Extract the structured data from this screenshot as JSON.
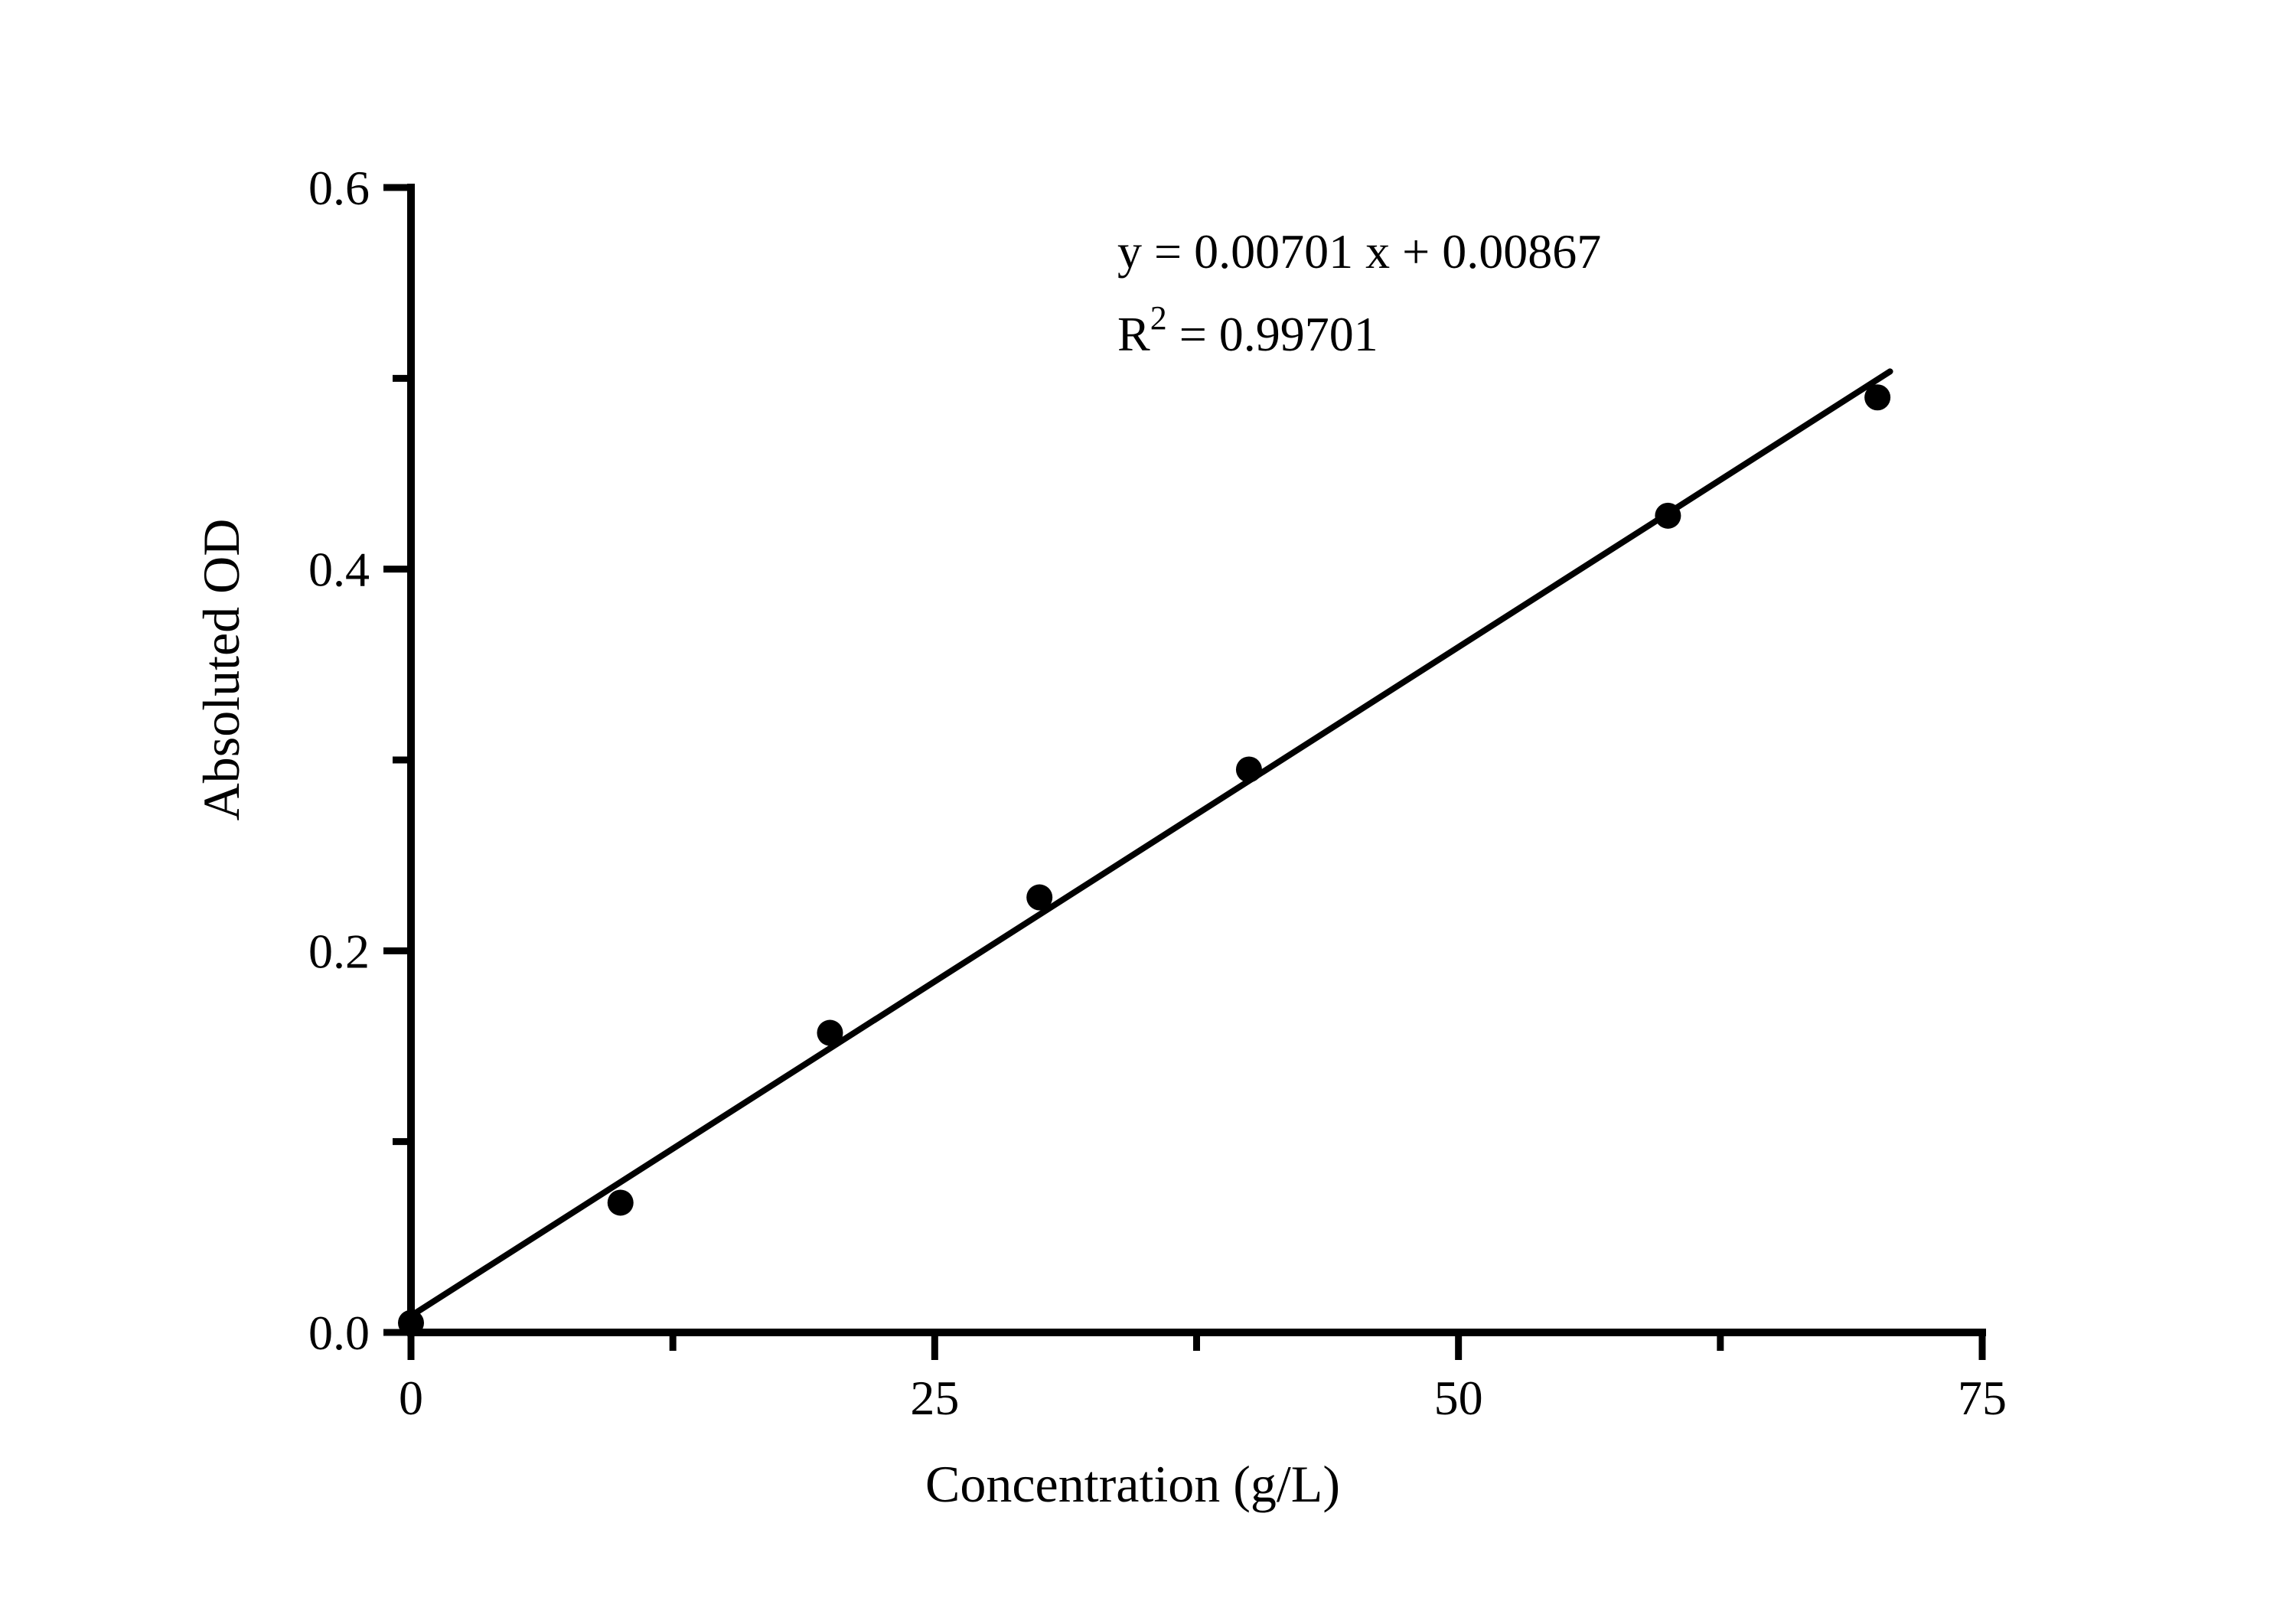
{
  "chart_data": {
    "type": "scatter",
    "title": "",
    "xlabel": "Concentration (g/L)",
    "ylabel": "Absoluted OD",
    "xlim": [
      0,
      75
    ],
    "ylim": [
      0,
      0.6
    ],
    "grid": false,
    "legend_position": "none",
    "x_major_ticks": [
      0,
      25,
      50,
      75
    ],
    "x_tick_labels": [
      "0",
      "25",
      "50",
      "75"
    ],
    "x_minor_ticks": [
      12.5,
      37.5,
      62.5
    ],
    "y_major_ticks": [
      0,
      0.2,
      0.4,
      0.6
    ],
    "y_tick_labels": [
      "0.0",
      "0.2",
      "0.4",
      "0.6"
    ],
    "y_minor_ticks": [
      0.1,
      0.3,
      0.5
    ],
    "points": [
      {
        "x": 0,
        "y": 0.005
      },
      {
        "x": 10,
        "y": 0.068
      },
      {
        "x": 20,
        "y": 0.157
      },
      {
        "x": 30,
        "y": 0.228
      },
      {
        "x": 40,
        "y": 0.295
      },
      {
        "x": 60,
        "y": 0.428
      },
      {
        "x": 70,
        "y": 0.49
      }
    ],
    "fit_line": {
      "slope": 0.00701,
      "intercept": 0.00867,
      "x_start": 0,
      "x_end": 70.6
    },
    "annotation": {
      "equation": "y = 0.00701 x + 0.00867",
      "r2_base": "R",
      "r2_sup": "2",
      "r2_rest": "= 0.99701"
    },
    "colors": {
      "foreground": "#000000",
      "background": "#ffffff"
    }
  }
}
